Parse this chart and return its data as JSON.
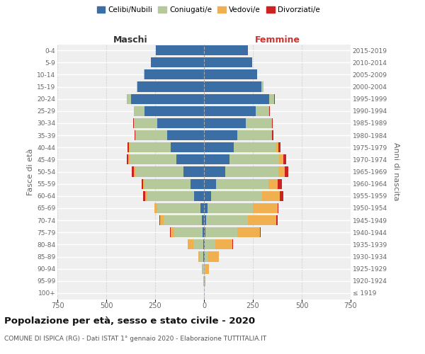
{
  "age_groups": [
    "100+",
    "95-99",
    "90-94",
    "85-89",
    "80-84",
    "75-79",
    "70-74",
    "65-69",
    "60-64",
    "55-59",
    "50-54",
    "45-49",
    "40-44",
    "35-39",
    "30-34",
    "25-29",
    "20-24",
    "15-19",
    "10-14",
    "5-9",
    "0-4"
  ],
  "birth_years": [
    "≤ 1919",
    "1920-1924",
    "1925-1929",
    "1930-1934",
    "1935-1939",
    "1940-1944",
    "1945-1949",
    "1950-1954",
    "1955-1959",
    "1960-1964",
    "1965-1969",
    "1970-1974",
    "1975-1979",
    "1980-1984",
    "1985-1989",
    "1990-1994",
    "1995-1999",
    "2000-2004",
    "2005-2009",
    "2010-2014",
    "2015-2019"
  ],
  "maschi": {
    "celibi": [
      0,
      0,
      1,
      2,
      4,
      8,
      12,
      18,
      52,
      68,
      105,
      140,
      170,
      190,
      240,
      305,
      375,
      340,
      305,
      270,
      245
    ],
    "coniugati": [
      0,
      2,
      5,
      18,
      50,
      145,
      195,
      220,
      238,
      238,
      248,
      242,
      212,
      158,
      118,
      52,
      18,
      5,
      2,
      1,
      0
    ],
    "vedovi": [
      0,
      1,
      4,
      10,
      28,
      18,
      18,
      14,
      9,
      5,
      5,
      5,
      2,
      2,
      1,
      1,
      1,
      1,
      0,
      0,
      0
    ],
    "divorziati": [
      0,
      0,
      0,
      0,
      1,
      2,
      2,
      2,
      14,
      7,
      11,
      9,
      7,
      5,
      3,
      2,
      1,
      0,
      0,
      0,
      0
    ]
  },
  "femmine": {
    "nubili": [
      0,
      0,
      1,
      2,
      4,
      7,
      11,
      17,
      38,
      62,
      108,
      132,
      152,
      172,
      212,
      265,
      332,
      295,
      270,
      246,
      226
    ],
    "coniugate": [
      0,
      2,
      7,
      19,
      54,
      162,
      212,
      232,
      258,
      268,
      272,
      252,
      218,
      172,
      132,
      66,
      26,
      8,
      2,
      1,
      0
    ],
    "vedove": [
      0,
      4,
      19,
      54,
      88,
      118,
      148,
      128,
      93,
      48,
      34,
      20,
      9,
      5,
      3,
      2,
      1,
      1,
      0,
      0,
      0
    ],
    "divorziate": [
      0,
      0,
      0,
      1,
      2,
      3,
      5,
      5,
      17,
      19,
      17,
      17,
      11,
      7,
      4,
      3,
      2,
      1,
      0,
      0,
      0
    ]
  },
  "colors": {
    "celibi": "#3a6ea5",
    "coniugati": "#b5c99a",
    "vedovi": "#f0b050",
    "divorziati": "#cc2222"
  },
  "legend_labels": [
    "Celibi/Nubili",
    "Coniugati/e",
    "Vedovi/e",
    "Divorziati/e"
  ],
  "xlim": 750,
  "title": "Popolazione per età, sesso e stato civile - 2020",
  "subtitle": "COMUNE DI ISPICA (RG) - Dati ISTAT 1° gennaio 2020 - Elaborazione TUTTITALIA.IT",
  "ylabel_left": "Fasce di età",
  "ylabel_right": "Anni di nascita",
  "header_left": "Maschi",
  "header_right": "Femmine",
  "bg_color": "#ffffff",
  "plot_bg": "#efefef"
}
